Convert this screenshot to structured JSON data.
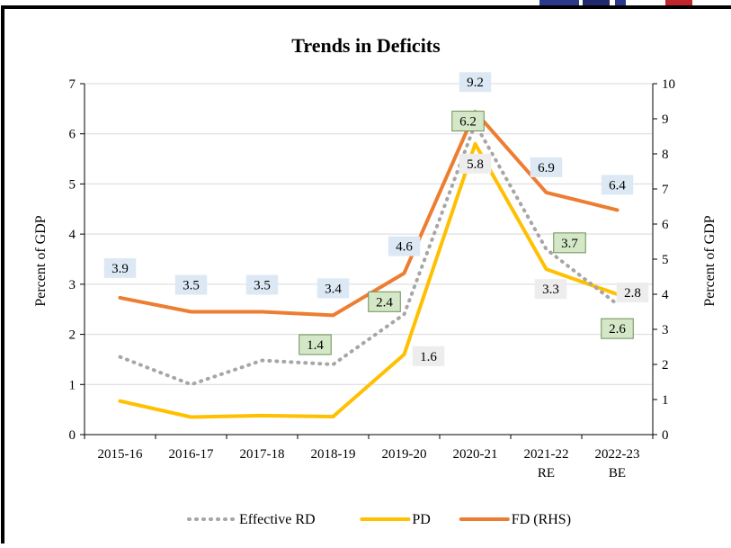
{
  "chart_data": {
    "type": "line",
    "title": "Trends in Deficits",
    "categories": [
      [
        "2015-16"
      ],
      [
        "2016-17"
      ],
      [
        "2017-18"
      ],
      [
        "2018-19"
      ],
      [
        "2019-20"
      ],
      [
        "2020-21"
      ],
      [
        "2021-22",
        "RE"
      ],
      [
        "2022-23",
        "BE"
      ]
    ],
    "y_left": {
      "label": "Percent of GDP",
      "ylim": [
        0,
        7
      ],
      "ticks": [
        "0",
        "1",
        "2",
        "3",
        "4",
        "5",
        "6",
        "7"
      ]
    },
    "y_right": {
      "label": "Percent of GDP",
      "ylim": [
        0,
        10
      ],
      "ticks": [
        "0",
        "1",
        "2",
        "3",
        "4",
        "5",
        "6",
        "7",
        "8",
        "9",
        "10"
      ]
    },
    "grid": true,
    "legend_position": "bottom",
    "series": [
      {
        "name": "Effective RD",
        "axis": "left",
        "style": "dotted",
        "color": "#a6a6a6",
        "values": [
          1.55,
          1.0,
          1.48,
          1.4,
          2.4,
          6.2,
          3.7,
          2.6
        ],
        "labels": [
          null,
          null,
          null,
          "1.4",
          "2.4",
          "6.2",
          "3.7",
          "2.6"
        ],
        "label_bg": "#d4e8c8"
      },
      {
        "name": "PD",
        "axis": "left",
        "style": "solid",
        "color": "#ffc000",
        "values": [
          0.67,
          0.35,
          0.38,
          0.36,
          1.6,
          5.8,
          3.3,
          2.8
        ],
        "labels": [
          null,
          null,
          null,
          null,
          "1.6",
          "5.8",
          "3.3",
          "2.8"
        ],
        "label_bg": "#ededed"
      },
      {
        "name": "FD (RHS)",
        "axis": "right",
        "style": "solid",
        "color": "#ed7d31",
        "values": [
          3.9,
          3.5,
          3.5,
          3.4,
          4.6,
          9.2,
          6.9,
          6.4
        ],
        "labels": [
          "3.9",
          "3.5",
          "3.5",
          "3.4",
          "4.6",
          "9.2",
          "6.9",
          "6.4"
        ],
        "label_bg": "#dce9f5"
      }
    ]
  }
}
